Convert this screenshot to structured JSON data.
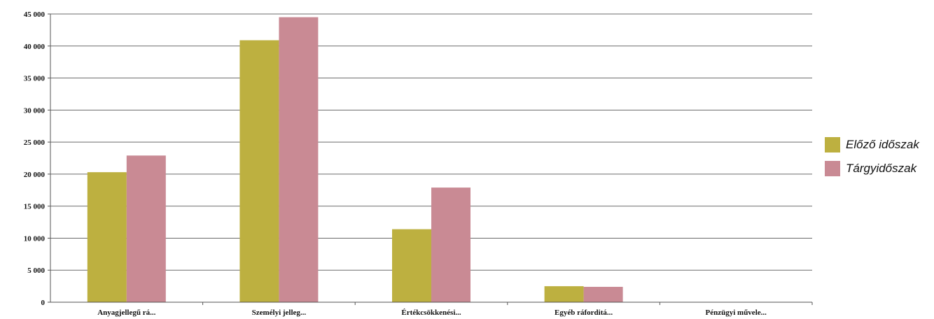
{
  "chart_data": {
    "type": "bar",
    "categories": [
      "Anyagjellegű rá...",
      "Személyi jelleg...",
      "Értékcsökkenési...",
      "Egyéb ráforditá...",
      "Pénzügyi művele..."
    ],
    "series": [
      {
        "name": "Előző időszak",
        "color": "#bdb040",
        "values": [
          20300,
          40900,
          11400,
          2500,
          0
        ]
      },
      {
        "name": "Tárgyidőszak",
        "color": "#c98a94",
        "values": [
          22900,
          44500,
          17900,
          2400,
          0
        ]
      }
    ],
    "ylim": [
      0,
      45000
    ],
    "yticks": [
      "0",
      "5 000",
      "10 000",
      "15 000",
      "20 000",
      "25 000",
      "30 000",
      "35 000",
      "40 000",
      "45 000"
    ],
    "grid": true,
    "legend_position": "right"
  }
}
